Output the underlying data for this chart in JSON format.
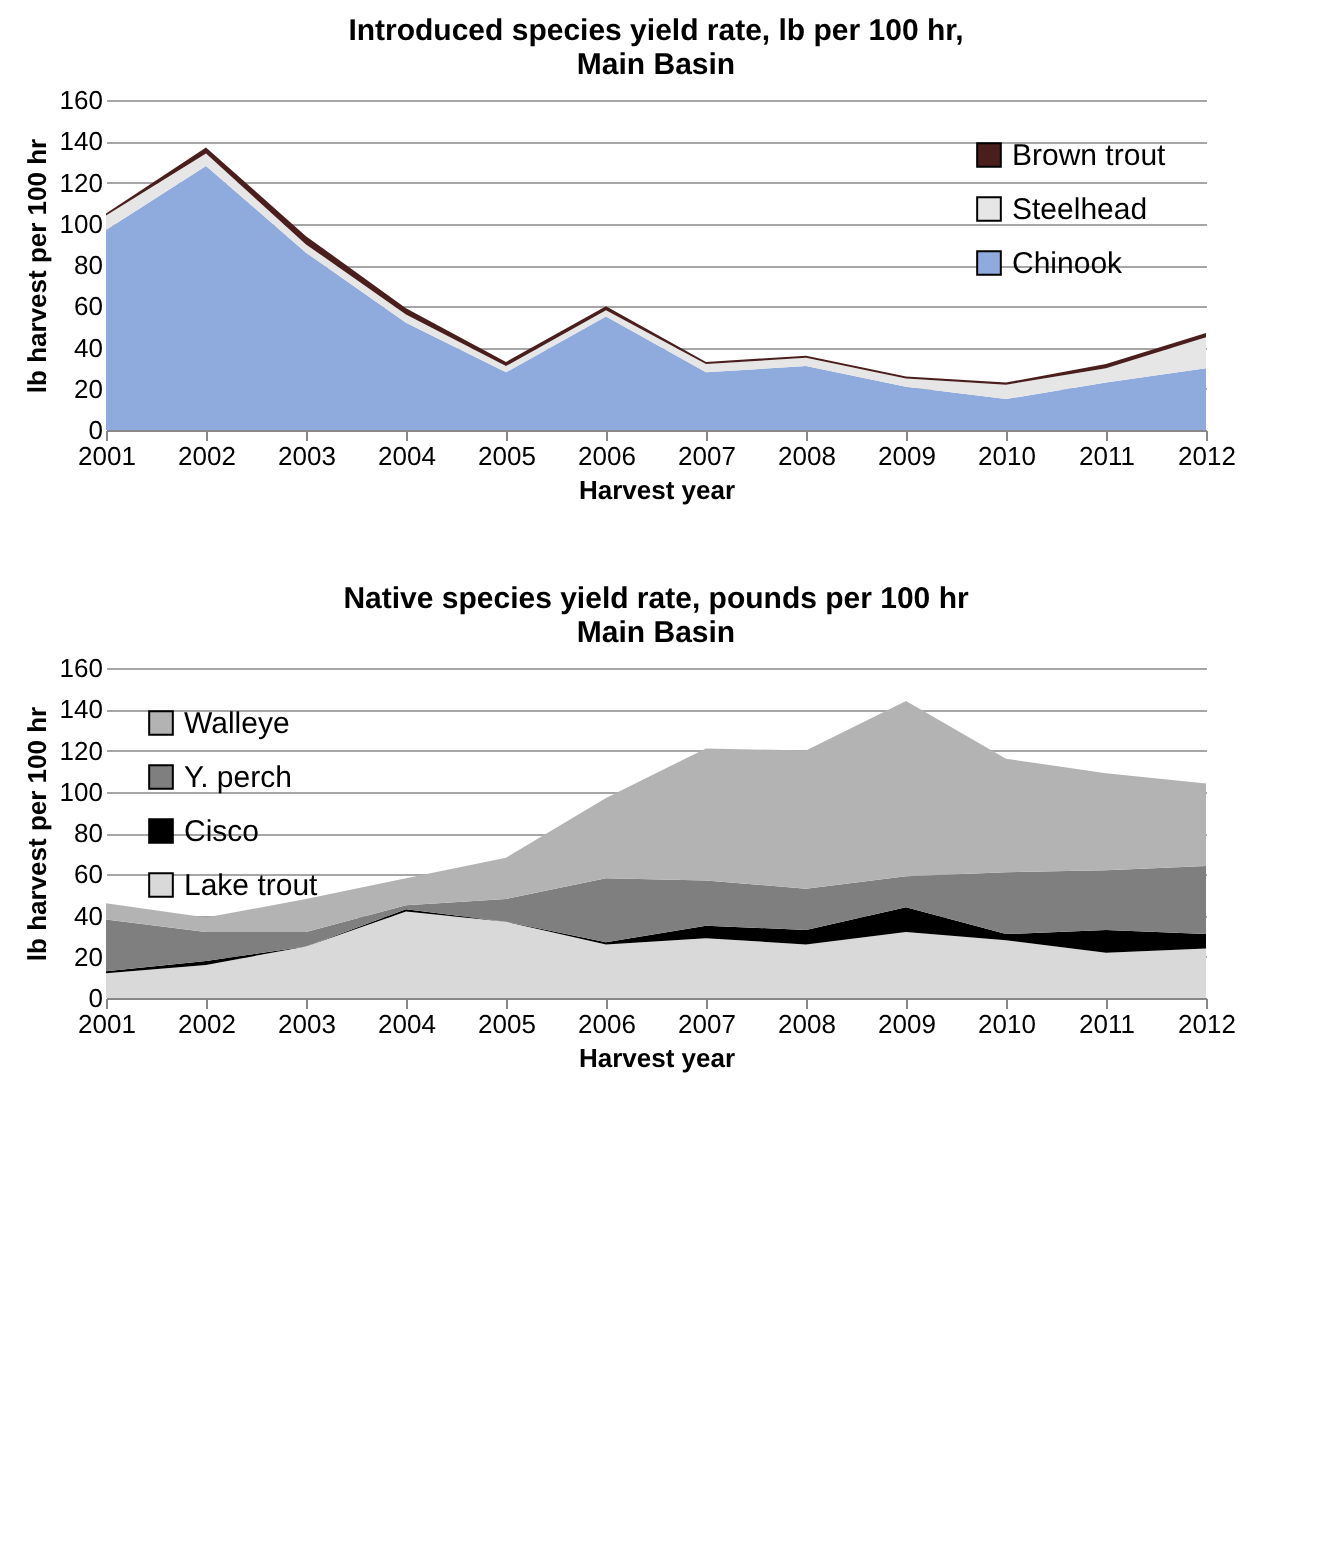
{
  "chart_data": [
    {
      "type": "area",
      "stacked": true,
      "title": "Introduced species yield rate, lb per 100 hr,\nMain Basin",
      "xlabel": "Harvest year",
      "ylabel": "lb harvest per 100 hr",
      "categories": [
        "2001",
        "2002",
        "2003",
        "2004",
        "2005",
        "2006",
        "2007",
        "2008",
        "2009",
        "2010",
        "2011",
        "2012"
      ],
      "ylim": [
        0,
        160
      ],
      "yticks": [
        0,
        20,
        40,
        60,
        80,
        100,
        120,
        140,
        160
      ],
      "grid": "y",
      "legend": "top right",
      "series": [
        {
          "name": "Chinook",
          "color": "#8faadc",
          "values": [
            97,
            128,
            86,
            52,
            28,
            55,
            28,
            31,
            21,
            15,
            23,
            30
          ]
        },
        {
          "name": "Steelhead",
          "color": "#e7e6e6",
          "values": [
            7,
            6,
            4,
            4,
            3,
            3,
            4,
            4,
            4,
            7,
            7,
            15
          ]
        },
        {
          "name": "Brown trout",
          "color": "#4b1e1e",
          "values": [
            1,
            3,
            4,
            3,
            2,
            2,
            1,
            1,
            1,
            1,
            2,
            2
          ]
        }
      ]
    },
    {
      "type": "area",
      "stacked": true,
      "title": "Native species yield rate, pounds per 100 hr\nMain Basin",
      "xlabel": "Harvest year",
      "ylabel": "lb harvest per 100 hr",
      "categories": [
        "2001",
        "2002",
        "2003",
        "2004",
        "2005",
        "2006",
        "2007",
        "2008",
        "2009",
        "2010",
        "2011",
        "2012"
      ],
      "ylim": [
        0,
        160
      ],
      "yticks": [
        0,
        20,
        40,
        60,
        80,
        100,
        120,
        140,
        160
      ],
      "grid": "y",
      "legend": "top left",
      "series": [
        {
          "name": "Lake trout",
          "color": "#d9d9d9",
          "values": [
            12,
            16,
            25,
            42,
            37,
            26,
            29,
            26,
            32,
            28,
            22,
            24
          ]
        },
        {
          "name": "Cisco",
          "color": "#000000",
          "values": [
            1,
            2,
            0,
            1,
            0,
            1,
            6,
            7,
            12,
            3,
            11,
            7
          ]
        },
        {
          "name": "Y. perch",
          "color": "#7f7f7f",
          "values": [
            25,
            14,
            7,
            2,
            11,
            31,
            22,
            20,
            15,
            30,
            29,
            33
          ]
        },
        {
          "name": "Walleye",
          "color": "#b3b3b3",
          "values": [
            8,
            7,
            16,
            13,
            20,
            39,
            64,
            67,
            85,
            55,
            47,
            40
          ]
        }
      ]
    }
  ]
}
